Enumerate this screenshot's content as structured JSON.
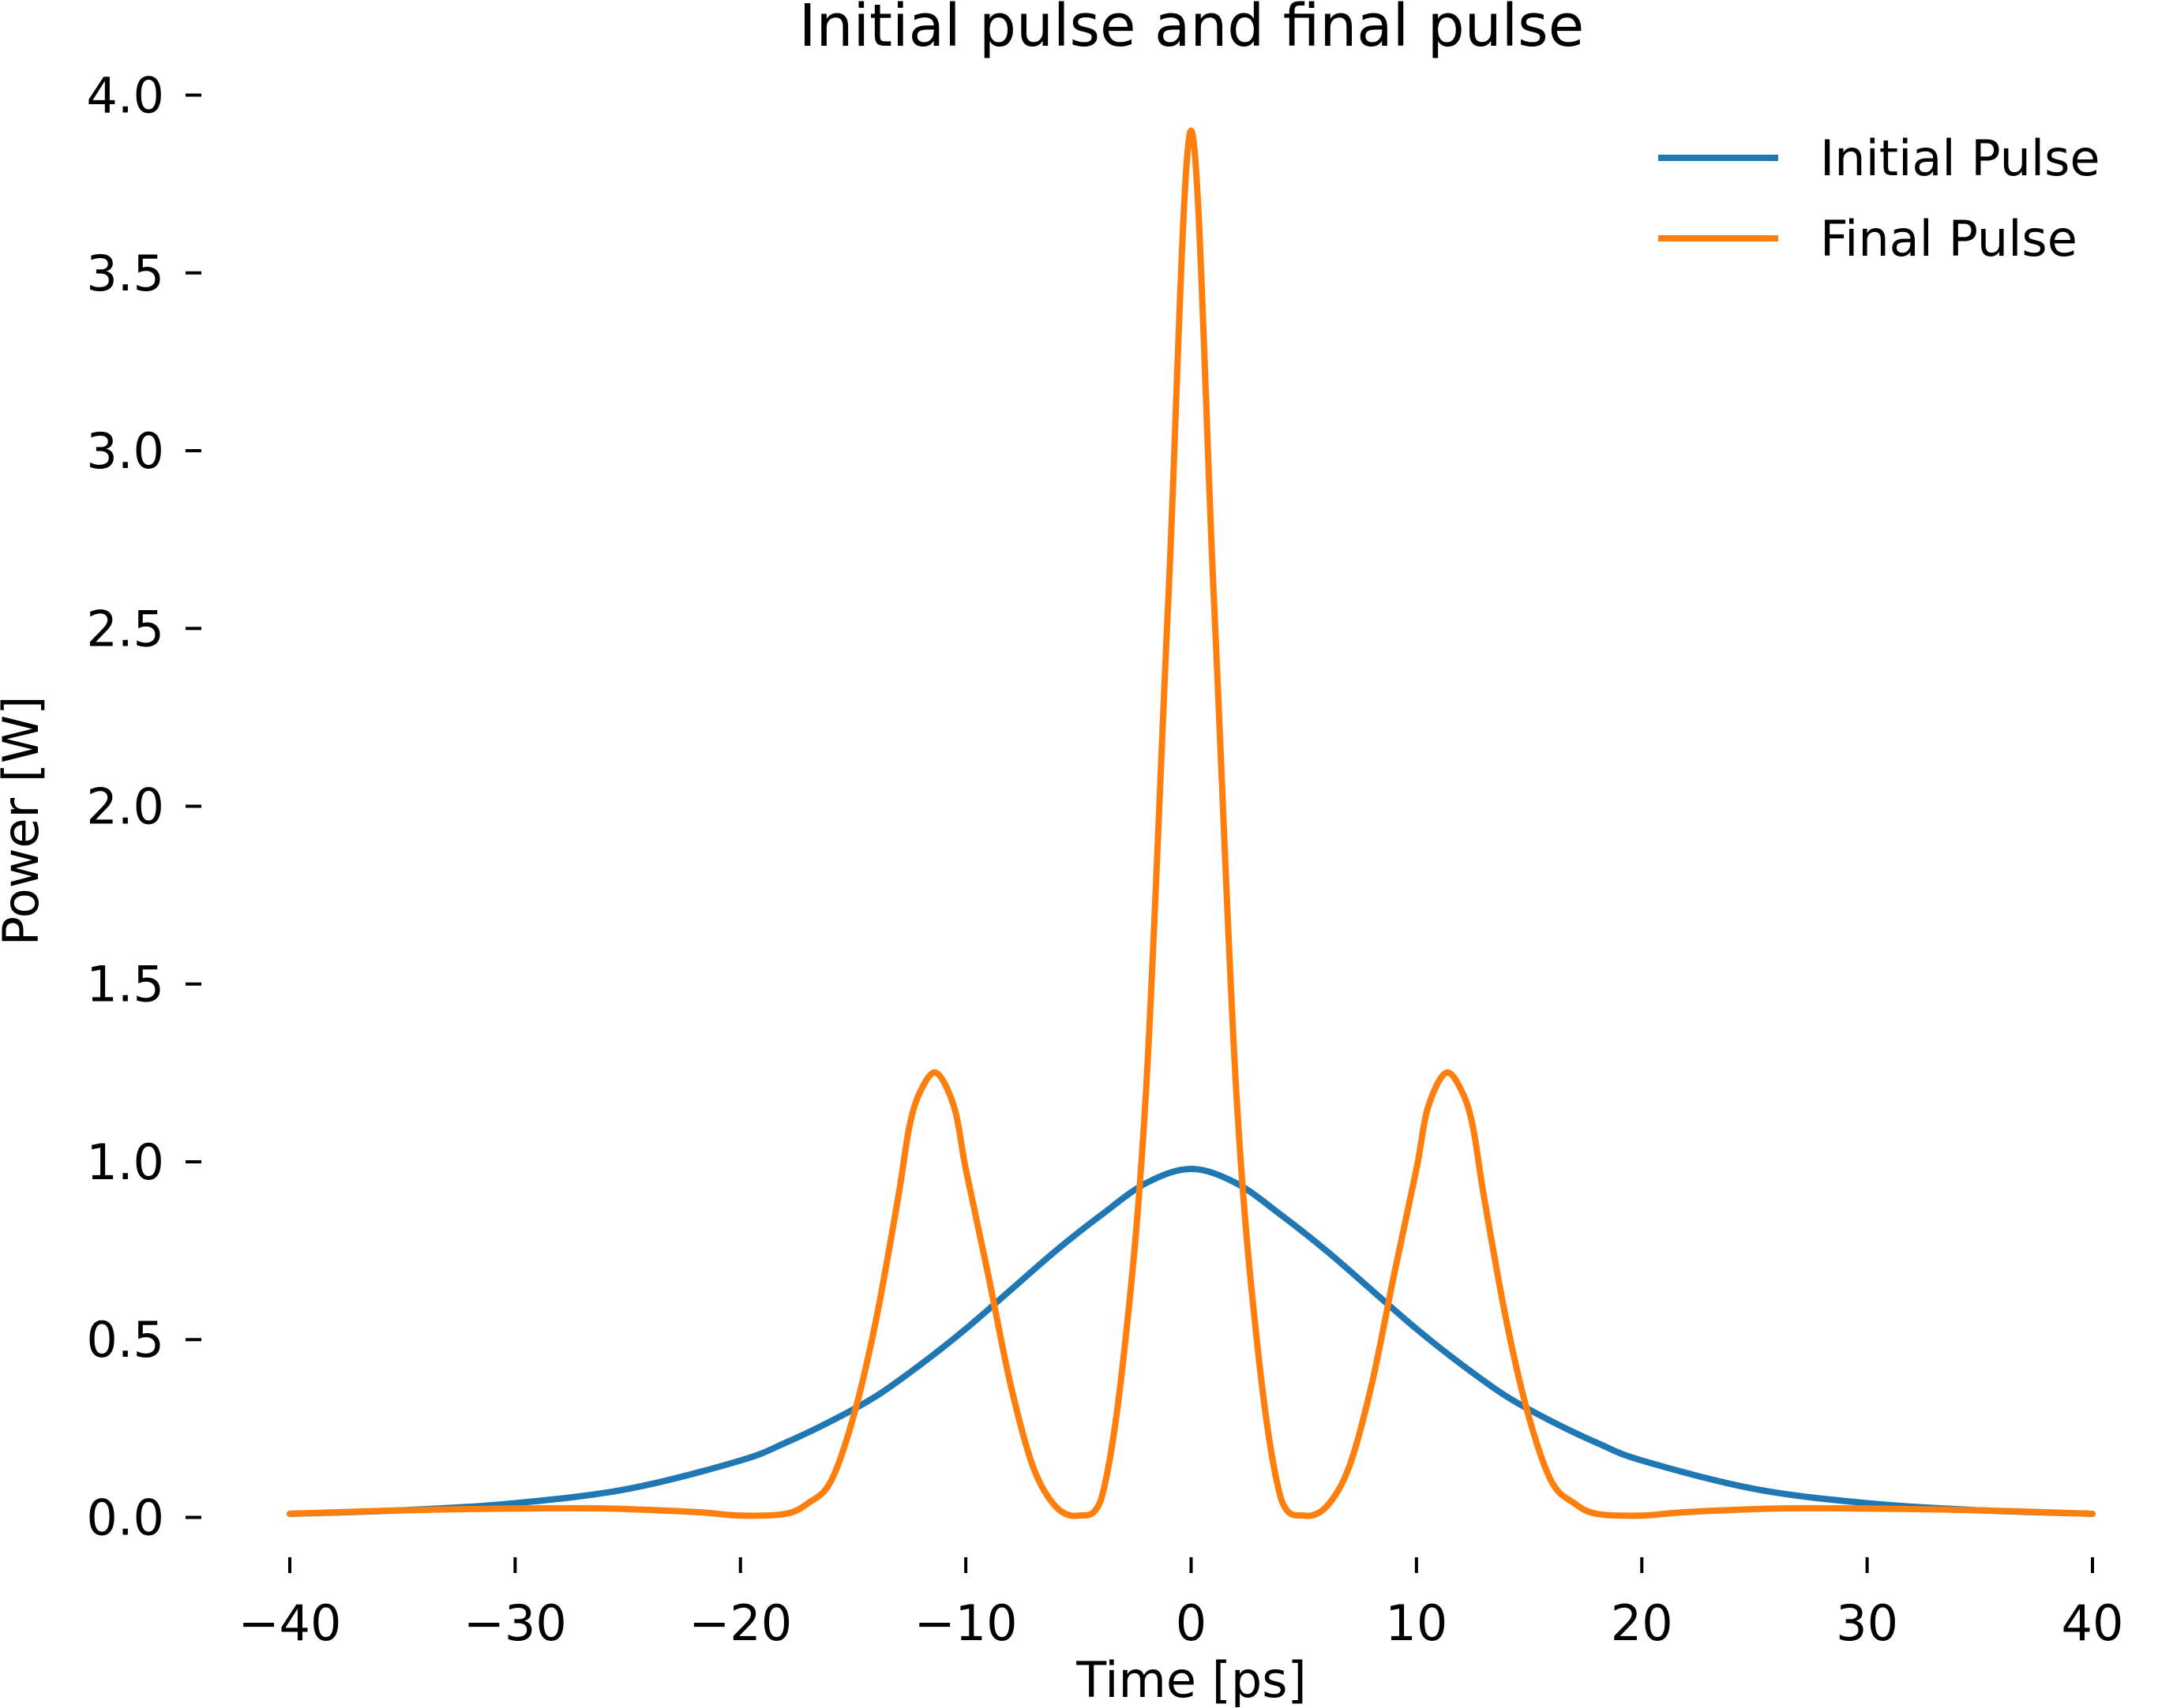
{
  "chart_data": {
    "type": "line",
    "title": "Initial pulse and final pulse",
    "xlabel": "Time [ps]",
    "ylabel": "Power [W]",
    "xlim": [
      -40,
      40
    ],
    "ylim": [
      -0.05,
      4.05
    ],
    "xticks": [
      -40,
      -30,
      -20,
      -10,
      0,
      10,
      20,
      30,
      40
    ],
    "xtick_labels": [
      "−40",
      "−30",
      "−20",
      "−10",
      "0",
      "10",
      "20",
      "30",
      "40"
    ],
    "yticks": [
      0.0,
      0.5,
      1.0,
      1.5,
      2.0,
      2.5,
      3.0,
      3.5,
      4.0
    ],
    "ytick_labels": [
      "0.0",
      "0.5",
      "1.0",
      "1.5",
      "2.0",
      "2.5",
      "3.0",
      "3.5",
      "4.0"
    ],
    "grid": false,
    "legend_position": "top-right",
    "series": [
      {
        "name": "Initial Pulse",
        "color": "#1f77b4",
        "x": [
          -40,
          -35,
          -30,
          -25,
          -20,
          -18,
          -16,
          -14,
          -12,
          -10,
          -8,
          -6,
          -4,
          -2,
          0,
          2,
          4,
          6,
          8,
          10,
          12,
          14,
          16,
          18,
          20,
          25,
          30,
          35,
          40
        ],
        "y": [
          0.01,
          0.02,
          0.04,
          0.08,
          0.16,
          0.21,
          0.27,
          0.34,
          0.43,
          0.53,
          0.64,
          0.75,
          0.85,
          0.94,
          0.98,
          0.94,
          0.85,
          0.75,
          0.64,
          0.53,
          0.43,
          0.34,
          0.27,
          0.21,
          0.16,
          0.08,
          0.04,
          0.02,
          0.01
        ]
      },
      {
        "name": "Final Pulse",
        "color": "#ff7f0e",
        "x": [
          -40,
          -35,
          -30,
          -26,
          -22,
          -20,
          -18,
          -17,
          -16,
          -15,
          -14,
          -13,
          -12.5,
          -12,
          -11.3,
          -10.5,
          -10,
          -9,
          -8,
          -7,
          -6,
          -5,
          -4,
          -3,
          -2,
          -1,
          0,
          1,
          2,
          3,
          4,
          5,
          6,
          7,
          8,
          9,
          10,
          10.5,
          11.3,
          12,
          12.5,
          13,
          14,
          15,
          16,
          17,
          18,
          20,
          22,
          26,
          30,
          35,
          40
        ],
        "y": [
          0.01,
          0.02,
          0.025,
          0.025,
          0.015,
          0.005,
          0.01,
          0.04,
          0.1,
          0.28,
          0.55,
          0.9,
          1.1,
          1.2,
          1.25,
          1.15,
          0.98,
          0.68,
          0.37,
          0.14,
          0.03,
          0.005,
          0.05,
          0.45,
          1.2,
          2.6,
          3.9,
          2.6,
          1.2,
          0.45,
          0.05,
          0.005,
          0.03,
          0.14,
          0.37,
          0.68,
          0.98,
          1.15,
          1.25,
          1.2,
          1.1,
          0.9,
          0.55,
          0.28,
          0.1,
          0.04,
          0.01,
          0.005,
          0.015,
          0.025,
          0.025,
          0.02,
          0.01
        ]
      }
    ]
  }
}
